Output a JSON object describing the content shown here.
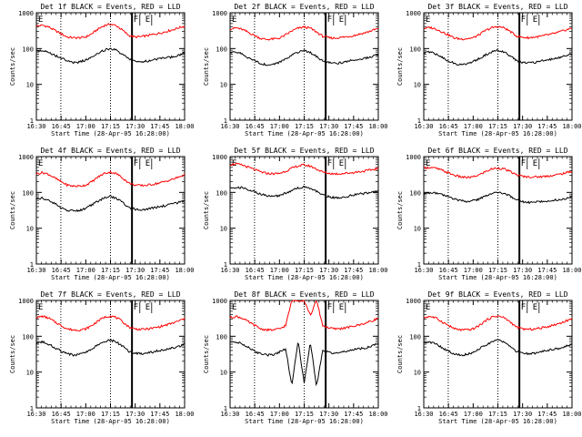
{
  "chart_data": [
    {
      "type": "line",
      "title": "Det 1f BLACK = Events, RED = LLD",
      "xlabel": "Start Time (28-Apr-05 16:28:00)",
      "ylabel": "Counts/sec",
      "x_ticks": [
        "16:30",
        "16:45",
        "17:00",
        "17:15",
        "17:30",
        "17:45",
        "18:00"
      ],
      "y_ticks": [
        "1",
        "10",
        "100",
        "1000"
      ],
      "xlim": [
        0,
        100
      ],
      "ylim": [
        1,
        1000
      ],
      "yscale": "log",
      "dotted_lines": [
        16.5,
        50
      ],
      "solid_line": 64.5,
      "markers": [
        {
          "label": "F",
          "x": 65.5
        },
        {
          "label": "E",
          "x": 73.5
        }
      ],
      "series": [
        {
          "color": "#ff0000",
          "values": [
            420,
            450,
            400,
            320,
            260,
            210,
            200,
            200,
            210,
            260,
            350,
            440,
            480,
            430,
            320,
            230,
            210,
            215,
            230,
            250,
            270,
            300,
            330,
            380,
            420
          ]
        },
        {
          "color": "#000000",
          "values": [
            85,
            90,
            80,
            65,
            55,
            45,
            40,
            42,
            48,
            60,
            75,
            90,
            100,
            88,
            68,
            50,
            45,
            42,
            45,
            48,
            52,
            55,
            58,
            65,
            75
          ]
        }
      ]
    },
    {
      "type": "line",
      "title": "Det 2f BLACK = Events, RED = LLD",
      "xlabel": "Start Time (28-Apr-05 16:28:00)",
      "ylabel": "Counts/sec",
      "x_ticks": [
        "16:30",
        "16:45",
        "17:00",
        "17:15",
        "17:30",
        "17:45",
        "18:00"
      ],
      "y_ticks": [
        "1",
        "10",
        "100",
        "1000"
      ],
      "xlim": [
        0,
        100
      ],
      "ylim": [
        1,
        1000
      ],
      "yscale": "log",
      "dotted_lines": [
        16.5,
        50
      ],
      "solid_line": 64.5,
      "markers": [
        {
          "label": "F",
          "x": 65.5
        },
        {
          "label": "E",
          "x": 73.5
        }
      ],
      "series": [
        {
          "color": "#ff0000",
          "values": [
            350,
            380,
            340,
            280,
            230,
            190,
            180,
            185,
            195,
            240,
            310,
            370,
            400,
            370,
            290,
            220,
            200,
            195,
            205,
            215,
            230,
            255,
            280,
            320,
            360
          ]
        },
        {
          "color": "#000000",
          "values": [
            75,
            80,
            70,
            55,
            45,
            38,
            35,
            36,
            42,
            52,
            65,
            80,
            88,
            78,
            60,
            45,
            40,
            38,
            40,
            44,
            48,
            50,
            55,
            60,
            70
          ]
        }
      ]
    },
    {
      "type": "line",
      "title": "Det 3f BLACK = Events, RED = LLD",
      "xlabel": "Start Time (28-Apr-05 16:28:00)",
      "ylabel": "Counts/sec",
      "x_ticks": [
        "16:30",
        "16:45",
        "17:00",
        "17:15",
        "17:30",
        "17:45",
        "18:00"
      ],
      "y_ticks": [
        "1",
        "10",
        "100",
        "1000"
      ],
      "xlim": [
        0,
        100
      ],
      "ylim": [
        1,
        1000
      ],
      "yscale": "log",
      "dotted_lines": [
        16.5,
        50
      ],
      "solid_line": 64.5,
      "markers": [
        {
          "label": "F",
          "x": 65.5
        },
        {
          "label": "E",
          "x": 73.5
        }
      ],
      "series": [
        {
          "color": "#ff0000",
          "values": [
            360,
            390,
            350,
            290,
            240,
            195,
            185,
            190,
            200,
            245,
            320,
            380,
            410,
            380,
            300,
            225,
            205,
            200,
            210,
            220,
            240,
            260,
            290,
            330,
            370
          ]
        },
        {
          "color": "#000000",
          "values": [
            75,
            80,
            70,
            56,
            46,
            38,
            35,
            37,
            43,
            53,
            66,
            80,
            90,
            80,
            62,
            46,
            41,
            39,
            41,
            45,
            49,
            52,
            56,
            62,
            72
          ]
        }
      ]
    },
    {
      "type": "line",
      "title": "Det 4f BLACK = Events, RED = LLD",
      "xlabel": "Start Time (28-Apr-05 16:28:00)",
      "ylabel": "Counts/sec",
      "x_ticks": [
        "16:30",
        "16:45",
        "17:00",
        "17:15",
        "17:30",
        "17:45",
        "18:00"
      ],
      "y_ticks": [
        "1",
        "10",
        "100",
        "1000"
      ],
      "xlim": [
        0,
        100
      ],
      "ylim": [
        1,
        1000
      ],
      "yscale": "log",
      "dotted_lines": [
        16.5,
        50
      ],
      "solid_line": 64.5,
      "markers": [
        {
          "label": "F",
          "x": 65.5
        },
        {
          "label": "E",
          "x": 73.5
        }
      ],
      "series": [
        {
          "color": "#ff0000",
          "values": [
            330,
            360,
            320,
            250,
            200,
            160,
            150,
            150,
            160,
            200,
            270,
            340,
            370,
            330,
            250,
            180,
            160,
            155,
            160,
            170,
            185,
            205,
            230,
            265,
            310
          ]
        },
        {
          "color": "#000000",
          "values": [
            65,
            70,
            60,
            48,
            38,
            32,
            30,
            31,
            36,
            45,
            57,
            70,
            78,
            68,
            52,
            38,
            34,
            32,
            34,
            37,
            40,
            43,
            47,
            52,
            60
          ]
        }
      ]
    },
    {
      "type": "line",
      "title": "Det 5f BLACK = Events, RED = LLD",
      "xlabel": "Start Time (28-Apr-05 16:28:00)",
      "ylabel": "Counts/sec",
      "x_ticks": [
        "16:30",
        "16:45",
        "17:00",
        "17:15",
        "17:30",
        "17:45",
        "18:00"
      ],
      "y_ticks": [
        "1",
        "10",
        "100",
        "1000"
      ],
      "xlim": [
        0,
        100
      ],
      "ylim": [
        1,
        1000
      ],
      "yscale": "log",
      "dotted_lines": [
        16.5,
        50
      ],
      "solid_line": 64.5,
      "markers": [
        {
          "label": "F",
          "x": 65.5
        },
        {
          "label": "E",
          "x": 73.5
        }
      ],
      "series": [
        {
          "color": "#ff0000",
          "values": [
            600,
            620,
            580,
            500,
            430,
            370,
            340,
            330,
            340,
            390,
            470,
            550,
            580,
            540,
            450,
            370,
            340,
            330,
            335,
            345,
            360,
            380,
            400,
            430,
            470
          ]
        },
        {
          "color": "#000000",
          "values": [
            130,
            140,
            135,
            120,
            105,
            90,
            80,
            78,
            82,
            95,
            115,
            135,
            140,
            130,
            108,
            85,
            75,
            70,
            72,
            78,
            85,
            90,
            95,
            100,
            110
          ]
        }
      ]
    },
    {
      "type": "line",
      "title": "Det 6f BLACK = Events, RED = LLD",
      "xlabel": "Start Time (28-Apr-05 16:28:00)",
      "ylabel": "Counts/sec",
      "x_ticks": [
        "16:30",
        "16:45",
        "17:00",
        "17:15",
        "17:30",
        "17:45",
        "18:00"
      ],
      "y_ticks": [
        "1",
        "10",
        "100",
        "1000"
      ],
      "xlim": [
        0,
        100
      ],
      "ylim": [
        1,
        1000
      ],
      "yscale": "log",
      "dotted_lines": [
        16.5,
        50
      ],
      "solid_line": 64.5,
      "markers": [
        {
          "label": "F",
          "x": 65.5
        },
        {
          "label": "E",
          "x": 73.5
        }
      ],
      "series": [
        {
          "color": "#ff0000",
          "values": [
            480,
            500,
            470,
            410,
            350,
            300,
            270,
            260,
            270,
            310,
            380,
            450,
            480,
            450,
            380,
            310,
            280,
            270,
            270,
            275,
            285,
            300,
            320,
            350,
            390
          ]
        },
        {
          "color": "#000000",
          "values": [
            90,
            98,
            95,
            85,
            75,
            65,
            58,
            56,
            58,
            66,
            80,
            95,
            100,
            92,
            78,
            62,
            55,
            52,
            53,
            55,
            58,
            60,
            63,
            68,
            78
          ]
        }
      ]
    },
    {
      "type": "line",
      "title": "Det 7f BLACK = Events, RED = LLD",
      "xlabel": "Start Time (28-Apr-05 16:28:00)",
      "ylabel": "Counts/sec",
      "x_ticks": [
        "16:30",
        "16:45",
        "17:00",
        "17:15",
        "17:30",
        "17:45",
        "18:00"
      ],
      "y_ticks": [
        "1",
        "10",
        "100",
        "1000"
      ],
      "xlim": [
        0,
        100
      ],
      "ylim": [
        1,
        1000
      ],
      "yscale": "log",
      "dotted_lines": [
        16.5,
        50
      ],
      "solid_line": 64.5,
      "markers": [
        {
          "label": "F",
          "x": 65.5
        },
        {
          "label": "E",
          "x": 73.5
        }
      ],
      "series": [
        {
          "color": "#ff0000",
          "values": [
            330,
            360,
            320,
            250,
            200,
            160,
            150,
            150,
            160,
            200,
            270,
            340,
            370,
            330,
            250,
            180,
            160,
            155,
            160,
            170,
            185,
            205,
            230,
            265,
            310
          ]
        },
        {
          "color": "#000000",
          "values": [
            65,
            70,
            60,
            48,
            38,
            32,
            30,
            31,
            36,
            45,
            57,
            70,
            78,
            68,
            52,
            38,
            34,
            32,
            34,
            37,
            40,
            43,
            47,
            52,
            60
          ]
        }
      ]
    },
    {
      "type": "line",
      "title": "Det 8f BLACK = Events, RED = LLD",
      "xlabel": "Start Time (28-Apr-05 16:28:00)",
      "ylabel": "Counts/sec",
      "x_ticks": [
        "16:30",
        "16:45",
        "17:00",
        "17:15",
        "17:30",
        "17:45",
        "18:00"
      ],
      "y_ticks": [
        "1",
        "10",
        "100",
        "1000"
      ],
      "xlim": [
        0,
        100
      ],
      "ylim": [
        1,
        1000
      ],
      "yscale": "log",
      "dotted_lines": [
        16.5,
        50
      ],
      "solid_line": 64.5,
      "markers": [
        {
          "label": "F",
          "x": 65.5
        },
        {
          "label": "E",
          "x": 73.5
        }
      ],
      "series": [
        {
          "color": "#ff0000",
          "values": [
            330,
            360,
            320,
            250,
            200,
            160,
            150,
            150,
            160,
            200,
            1000,
            1000,
            1000,
            380,
            1000,
            200,
            170,
            160,
            165,
            175,
            190,
            210,
            235,
            270,
            320
          ]
        },
        {
          "color": "#000000",
          "values": [
            65,
            70,
            60,
            48,
            38,
            32,
            30,
            31,
            36,
            45,
            4,
            75,
            5,
            70,
            4,
            40,
            35,
            33,
            35,
            38,
            42,
            45,
            48,
            53,
            62
          ]
        }
      ]
    },
    {
      "type": "line",
      "title": "Det 9f BLACK = Events, RED = LLD",
      "xlabel": "Start Time (28-Apr-05 16:28:00)",
      "ylabel": "Counts/sec",
      "x_ticks": [
        "16:30",
        "16:45",
        "17:00",
        "17:15",
        "17:30",
        "17:45",
        "18:00"
      ],
      "y_ticks": [
        "1",
        "10",
        "100",
        "1000"
      ],
      "xlim": [
        0,
        100
      ],
      "ylim": [
        1,
        1000
      ],
      "yscale": "log",
      "dotted_lines": [
        16.5,
        50
      ],
      "solid_line": 64.5,
      "markers": [
        {
          "label": "F",
          "x": 65.5
        },
        {
          "label": "E",
          "x": 73.5
        }
      ],
      "series": [
        {
          "color": "#ff0000",
          "values": [
            330,
            360,
            320,
            250,
            200,
            160,
            150,
            150,
            160,
            200,
            270,
            340,
            370,
            330,
            250,
            180,
            160,
            155,
            160,
            170,
            185,
            205,
            230,
            265,
            310
          ]
        },
        {
          "color": "#000000",
          "values": [
            65,
            70,
            60,
            48,
            38,
            32,
            30,
            31,
            36,
            45,
            57,
            70,
            78,
            68,
            52,
            38,
            34,
            32,
            34,
            37,
            40,
            43,
            47,
            52,
            60
          ]
        }
      ]
    }
  ]
}
